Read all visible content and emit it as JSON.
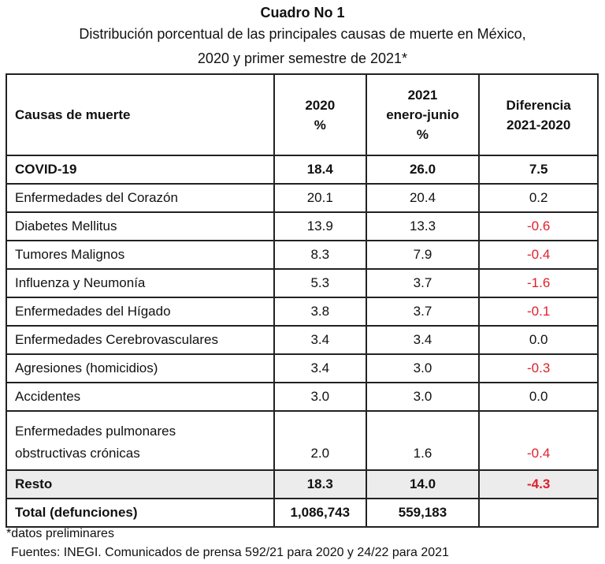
{
  "title": "Cuadro No 1",
  "subtitle_line1": "Distribución porcentual de las principales causas de muerte en México,",
  "subtitle_line2": "2020 y primer semestre de 2021*",
  "headers": {
    "cause": "Causas de muerte",
    "y2020_a": "2020",
    "y2020_b": "%",
    "y2021_a": "2021",
    "y2021_b": "enero-junio",
    "y2021_c": "%",
    "diff_a": "Diferencia",
    "diff_b": "2021-2020"
  },
  "rows": [
    {
      "cause": "COVID-19",
      "v2020": "18.4",
      "v2021": "26.0",
      "diff": "7.5"
    },
    {
      "cause": "Enfermedades del Corazón",
      "v2020": "20.1",
      "v2021": "20.4",
      "diff": "0.2"
    },
    {
      "cause": "Diabetes Mellitus",
      "v2020": "13.9",
      "v2021": "13.3",
      "diff": "-0.6"
    },
    {
      "cause": "Tumores Malignos",
      "v2020": "8.3",
      "v2021": "7.9",
      "diff": "-0.4"
    },
    {
      "cause": "Influenza y Neumonía",
      "v2020": "5.3",
      "v2021": "3.7",
      "diff": "-1.6"
    },
    {
      "cause": "Enfermedades del Hígado",
      "v2020": "3.8",
      "v2021": "3.7",
      "diff": "-0.1"
    },
    {
      "cause": "Enfermedades Cerebrovasculares",
      "v2020": "3.4",
      "v2021": "3.4",
      "diff": "0.0"
    },
    {
      "cause": "Agresiones (homicidios)",
      "v2020": "3.4",
      "v2021": "3.0",
      "diff": "-0.3"
    },
    {
      "cause": "Accidentes",
      "v2020": "3.0",
      "v2021": "3.0",
      "diff": "0.0"
    },
    {
      "cause_a": "Enfermedades pulmonares",
      "cause_b": "obstructivas crónicas",
      "v2020": "2.0",
      "v2021": "1.6",
      "diff": "-0.4"
    },
    {
      "cause": "Resto",
      "v2020": "18.3",
      "v2021": "14.0",
      "diff": "-4.3"
    },
    {
      "cause": "Total (defunciones)",
      "v2020": "1,086,743",
      "v2021": "559,183",
      "diff": ""
    }
  ],
  "negative_color": "#e0202a",
  "note": "*datos preliminares",
  "source": "Fuentes: INEGI. Comunicados de prensa 592/21 para 2020 y 24/22 para 2021"
}
